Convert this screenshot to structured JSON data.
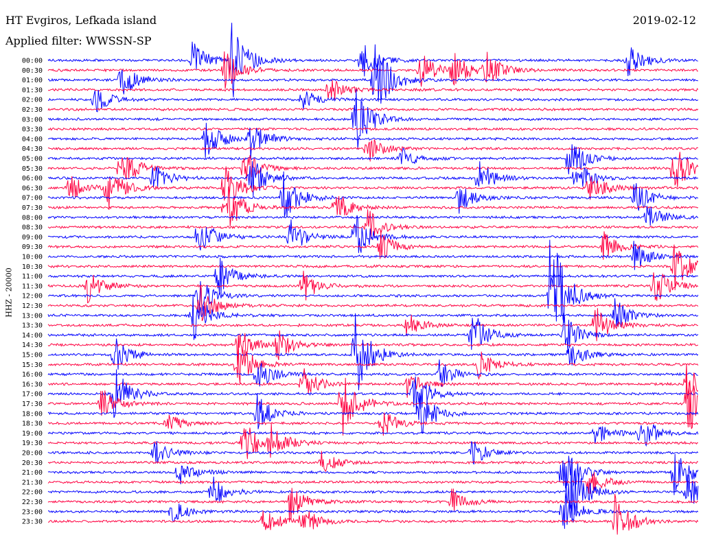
{
  "header": {
    "station": "HT Evgiros, Lefkada island",
    "date": "2019-02-12",
    "filter": "Applied filter: WWSSN-SP"
  },
  "chart_data": {
    "type": "line",
    "title": "HT Evgiros, Lefkada island",
    "ylabel": "HHZ - 20000",
    "tick_labels": [
      "00:00",
      "00:30",
      "01:00",
      "01:30",
      "02:00",
      "02:30",
      "03:00",
      "03:30",
      "04:00",
      "04:30",
      "05:00",
      "05:30",
      "06:00",
      "06:30",
      "07:00",
      "07:30",
      "08:00",
      "08:30",
      "09:00",
      "09:30",
      "10:00",
      "10:30",
      "11:00",
      "11:30",
      "12:00",
      "12:30",
      "13:00",
      "13:30",
      "14:00",
      "14:30",
      "15:00",
      "15:30",
      "16:00",
      "16:30",
      "17:00",
      "17:30",
      "18:00",
      "18:30",
      "19:00",
      "19:30",
      "20:00",
      "20:30",
      "21:00",
      "21:30",
      "22:00",
      "22:30",
      "23:00",
      "23:30"
    ],
    "series_colors": [
      "#0000ff",
      "#ff0040"
    ],
    "grid": false,
    "events": [
      [
        0,
        0.28,
        2.2
      ],
      [
        0,
        0.22,
        1.0
      ],
      [
        0,
        0.48,
        1.0
      ],
      [
        0,
        0.89,
        0.9
      ],
      [
        1,
        0.27,
        1.2
      ],
      [
        1,
        0.57,
        1.0
      ],
      [
        1,
        0.62,
        1.0
      ],
      [
        1,
        0.67,
        1.0
      ],
      [
        2,
        0.11,
        1.1
      ],
      [
        2,
        0.5,
        2.4
      ],
      [
        3,
        0.43,
        0.8
      ],
      [
        4,
        0.07,
        0.8
      ],
      [
        4,
        0.39,
        0.6
      ],
      [
        6,
        0.47,
        2.0
      ],
      [
        8,
        0.24,
        1.2
      ],
      [
        8,
        0.31,
        1.0
      ],
      [
        9,
        0.49,
        0.8
      ],
      [
        10,
        0.8,
        1.2
      ],
      [
        10,
        0.54,
        0.6
      ],
      [
        11,
        0.11,
        1.3
      ],
      [
        11,
        0.3,
        1.0
      ],
      [
        11,
        0.96,
        1.5
      ],
      [
        12,
        0.16,
        0.9
      ],
      [
        12,
        0.31,
        1.2
      ],
      [
        12,
        0.66,
        1.0
      ],
      [
        12,
        0.81,
        1.0
      ],
      [
        13,
        0.03,
        0.8
      ],
      [
        13,
        0.09,
        1.2
      ],
      [
        13,
        0.27,
        1.4
      ],
      [
        13,
        0.83,
        0.9
      ],
      [
        14,
        0.36,
        1.6
      ],
      [
        14,
        0.9,
        1.0
      ],
      [
        14,
        0.63,
        0.8
      ],
      [
        15,
        0.27,
        1.6
      ],
      [
        15,
        0.44,
        0.9
      ],
      [
        16,
        0.92,
        0.8
      ],
      [
        17,
        0.49,
        1.0
      ],
      [
        18,
        0.23,
        1.2
      ],
      [
        18,
        0.37,
        1.0
      ],
      [
        18,
        0.47,
        1.3
      ],
      [
        19,
        0.51,
        0.8
      ],
      [
        19,
        0.85,
        0.9
      ],
      [
        20,
        0.9,
        0.7
      ],
      [
        21,
        0.96,
        1.4
      ],
      [
        22,
        0.26,
        1.1
      ],
      [
        23,
        0.06,
        0.9
      ],
      [
        23,
        0.39,
        0.9
      ],
      [
        23,
        0.93,
        1.2
      ],
      [
        24,
        0.23,
        1.0
      ],
      [
        24,
        0.77,
        4.0
      ],
      [
        25,
        0.23,
        1.2
      ],
      [
        26,
        0.22,
        1.5
      ],
      [
        26,
        0.87,
        0.9
      ],
      [
        27,
        0.84,
        1.0
      ],
      [
        27,
        0.55,
        0.7
      ],
      [
        28,
        0.65,
        1.3
      ],
      [
        28,
        0.79,
        1.2
      ],
      [
        29,
        0.29,
        1.0
      ],
      [
        29,
        0.35,
        0.9
      ],
      [
        30,
        0.1,
        1.0
      ],
      [
        30,
        0.47,
        2.5
      ],
      [
        30,
        0.8,
        0.8
      ],
      [
        31,
        0.29,
        1.3
      ],
      [
        31,
        0.66,
        0.8
      ],
      [
        32,
        0.32,
        0.9
      ],
      [
        32,
        0.6,
        0.8
      ],
      [
        33,
        0.39,
        0.9
      ],
      [
        33,
        0.55,
        0.7
      ],
      [
        33,
        0.98,
        1.0
      ],
      [
        34,
        0.1,
        1.5
      ],
      [
        34,
        0.56,
        1.4
      ],
      [
        35,
        0.45,
        1.8
      ],
      [
        35,
        0.08,
        0.9
      ],
      [
        35,
        0.98,
        2.0
      ],
      [
        36,
        0.32,
        1.0
      ],
      [
        36,
        0.57,
        1.3
      ],
      [
        37,
        0.51,
        0.8
      ],
      [
        37,
        0.18,
        0.6
      ],
      [
        38,
        0.91,
        1.0
      ],
      [
        38,
        0.84,
        0.6
      ],
      [
        39,
        0.3,
        1.2
      ],
      [
        39,
        0.34,
        1.0
      ],
      [
        40,
        0.16,
        0.8
      ],
      [
        40,
        0.65,
        0.7
      ],
      [
        41,
        0.42,
        0.6
      ],
      [
        42,
        0.2,
        0.7
      ],
      [
        42,
        0.79,
        1.6
      ],
      [
        42,
        0.96,
        1.5
      ],
      [
        43,
        0.83,
        0.8
      ],
      [
        44,
        0.25,
        0.9
      ],
      [
        44,
        0.8,
        2.0
      ],
      [
        44,
        0.98,
        1.1
      ],
      [
        45,
        0.37,
        1.0
      ],
      [
        45,
        0.62,
        0.7
      ],
      [
        46,
        0.19,
        0.6
      ],
      [
        46,
        0.79,
        1.2
      ],
      [
        47,
        0.33,
        0.8
      ],
      [
        47,
        0.39,
        0.8
      ],
      [
        47,
        0.87,
        1.5
      ]
    ]
  }
}
